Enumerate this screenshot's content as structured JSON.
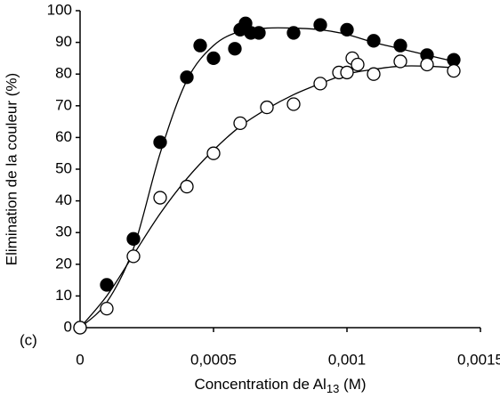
{
  "chart_data": {
    "type": "scatter",
    "y_label": "Elimination de la couleur (%)",
    "x_label": [
      "Concentration de Al",
      "13",
      " (M)"
    ],
    "annotation": "(c)",
    "xlim": [
      0,
      0.0015
    ],
    "xticks": [
      0,
      {
        "value": 0.0005,
        "label": "0,0005"
      },
      {
        "value": 0.001,
        "label": "0,001"
      },
      {
        "value": 0.0015,
        "label": "0,0015"
      }
    ],
    "ylim": [
      0,
      100
    ],
    "yticks": [
      0,
      10,
      20,
      30,
      40,
      50,
      60,
      70,
      80,
      90,
      100
    ],
    "series": [
      {
        "color": "#000000",
        "marker": "filled",
        "x": [
          0,
          0.0001,
          0.0002,
          0.0003,
          0.0004,
          0.00045,
          0.0005,
          0.00058,
          0.0006,
          0.00062,
          0.00064,
          0.00067,
          0.0008,
          0.0009,
          0.001,
          0.0011,
          0.0012,
          0.0013,
          0.0014
        ],
        "values": [
          0,
          13.5,
          28,
          58.5,
          79,
          89,
          85,
          88,
          94,
          96,
          93,
          93,
          93,
          95.5,
          94,
          90.5,
          89,
          86,
          84.5
        ]
      },
      {
        "color": "#000000",
        "marker": "open",
        "x": [
          0,
          0.0001,
          0.0002,
          0.0003,
          0.0004,
          0.0005,
          0.0006,
          0.0007,
          0.0008,
          0.0009,
          0.00097,
          0.001,
          0.00102,
          0.00104,
          0.0011,
          0.0012,
          0.0013,
          0.0014
        ],
        "values": [
          0,
          6,
          22.5,
          41,
          44.5,
          55,
          64.5,
          69.5,
          70.5,
          77,
          80.5,
          80.5,
          85,
          83,
          80,
          84,
          83,
          81
        ]
      }
    ],
    "curve_x": [
      0,
      0.0001,
      0.0002,
      0.0003,
      0.0004,
      0.0005,
      0.0006,
      0.0007,
      0.0008,
      0.0009,
      0.001,
      0.0011,
      0.0012,
      0.0013,
      0.0014
    ],
    "curves": [
      {
        "color": "#000000",
        "values": [
          0,
          8,
          25,
          55,
          78,
          89,
          93.5,
          94.5,
          94.5,
          94,
          92.5,
          90,
          88,
          86,
          84
        ]
      },
      {
        "color": "#000000",
        "values": [
          0,
          10,
          23,
          36,
          47,
          56,
          63.5,
          69,
          73.5,
          77,
          80,
          81.5,
          82.5,
          82.5,
          82
        ]
      }
    ]
  }
}
